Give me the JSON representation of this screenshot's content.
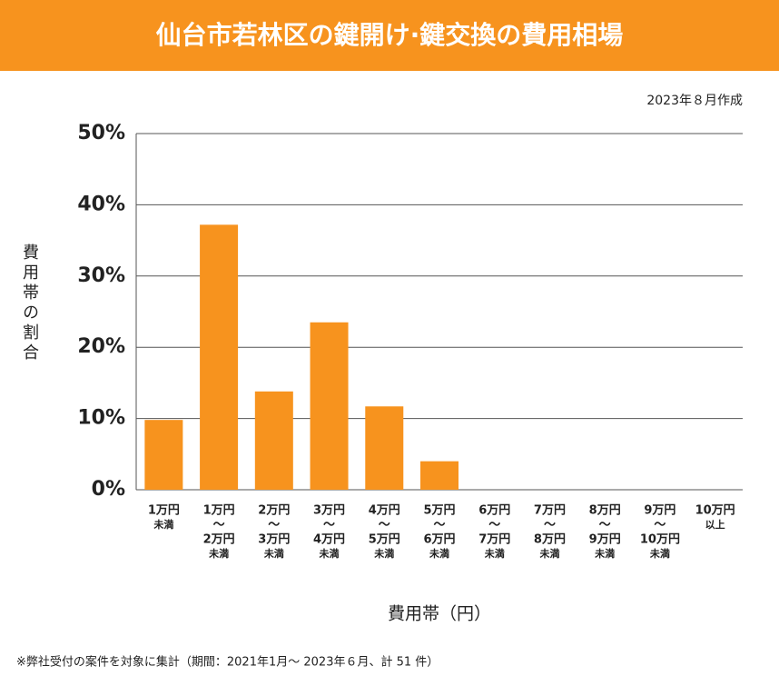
{
  "chart_data": {
    "type": "bar",
    "title": "仙台市若林区の鍵開け·鍵交換の費用相場",
    "subtitle": "2023年８月作成",
    "y_label": "費用帯の割合",
    "x_label": "費用帯（円）",
    "note": "※弊社受付の案件を対象に集計（期間：2021年1月～ 2023年６月、計 51 件）",
    "categories": [
      [
        "1万円",
        "未満"
      ],
      [
        "1万円",
        "〜",
        "2万円",
        "未満"
      ],
      [
        "2万円",
        "〜",
        "3万円",
        "未満"
      ],
      [
        "3万円",
        "〜",
        "4万円",
        "未満"
      ],
      [
        "4万円",
        "〜",
        "5万円",
        "未満"
      ],
      [
        "5万円",
        "〜",
        "6万円",
        "未満"
      ],
      [
        "6万円",
        "〜",
        "7万円",
        "未満"
      ],
      [
        "7万円",
        "〜",
        "8万円",
        "未満"
      ],
      [
        "8万円",
        "〜",
        "9万円",
        "未満"
      ],
      [
        "9万円",
        "〜",
        "10万円",
        "未満"
      ],
      [
        "10万円",
        "以上"
      ]
    ],
    "values": [
      9.8,
      37.2,
      13.8,
      23.5,
      11.7,
      4.0,
      0,
      0,
      0,
      0,
      0
    ],
    "color": "#f7931e",
    "ylim": [
      0,
      50
    ],
    "yticks": [
      {
        "value": 0,
        "label": "0%"
      },
      {
        "value": 10,
        "label": "10%"
      },
      {
        "value": 20,
        "label": "20%"
      },
      {
        "value": 30,
        "label": "30%"
      },
      {
        "value": 40,
        "label": "40%"
      },
      {
        "value": 50,
        "label": "50%"
      }
    ],
    "grid": true
  }
}
